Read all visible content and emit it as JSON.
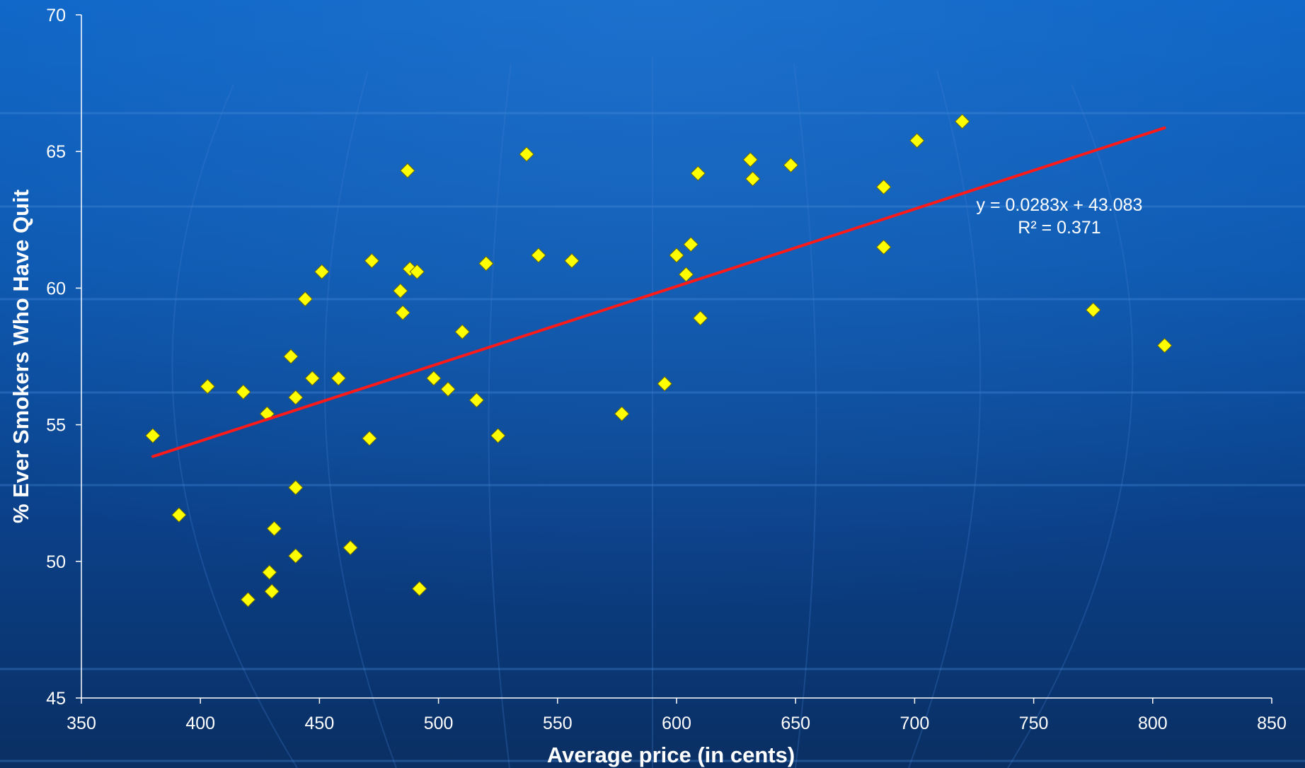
{
  "colors": {
    "marker": "#ffff00",
    "marker_stroke": "#6b6b00",
    "trendline": "#ff1a1a",
    "axis": "#ffffff",
    "text": "#ffffff"
  },
  "chart_data": {
    "type": "scatter",
    "title": "",
    "xlabel": "Average price (in cents)",
    "ylabel": "% Ever Smokers Who Have Quit",
    "xlim": [
      350,
      850
    ],
    "ylim": [
      45,
      70
    ],
    "x_ticks": [
      350,
      400,
      450,
      500,
      550,
      600,
      650,
      700,
      750,
      800,
      850
    ],
    "y_ticks": [
      45,
      50,
      55,
      60,
      65,
      70
    ],
    "grid": false,
    "legend": "none",
    "series": [
      {
        "marker": "diamond",
        "points": [
          [
            380,
            54.6
          ],
          [
            391,
            51.7
          ],
          [
            403,
            56.4
          ],
          [
            418,
            56.2
          ],
          [
            420,
            48.6
          ],
          [
            428,
            55.4
          ],
          [
            429,
            49.6
          ],
          [
            430,
            48.9
          ],
          [
            431,
            51.2
          ],
          [
            438,
            57.5
          ],
          [
            440,
            56.0
          ],
          [
            440,
            52.7
          ],
          [
            440,
            50.2
          ],
          [
            444,
            59.6
          ],
          [
            447,
            56.7
          ],
          [
            451,
            60.6
          ],
          [
            458,
            56.7
          ],
          [
            463,
            50.5
          ],
          [
            471,
            54.5
          ],
          [
            472,
            61.0
          ],
          [
            484,
            59.9
          ],
          [
            485,
            59.1
          ],
          [
            487,
            64.3
          ],
          [
            488,
            60.7
          ],
          [
            491,
            60.6
          ],
          [
            492,
            49.0
          ],
          [
            498,
            56.7
          ],
          [
            504,
            56.3
          ],
          [
            510,
            58.4
          ],
          [
            516,
            55.9
          ],
          [
            520,
            60.9
          ],
          [
            525,
            54.6
          ],
          [
            537,
            64.9
          ],
          [
            542,
            61.2
          ],
          [
            556,
            61.0
          ],
          [
            577,
            55.4
          ],
          [
            595,
            56.5
          ],
          [
            600,
            61.2
          ],
          [
            604,
            60.5
          ],
          [
            606,
            61.6
          ],
          [
            609,
            64.2
          ],
          [
            610,
            58.9
          ],
          [
            631,
            64.7
          ],
          [
            632,
            64.0
          ],
          [
            648,
            64.5
          ],
          [
            687,
            63.7
          ],
          [
            687,
            61.5
          ],
          [
            701,
            65.4
          ],
          [
            720,
            66.1
          ],
          [
            775,
            59.2
          ],
          [
            805,
            57.9
          ]
        ]
      }
    ],
    "trendline": {
      "type": "linear",
      "slope": 0.0283,
      "intercept": 43.083,
      "x_range": [
        380,
        805
      ],
      "equation_label": "y = 0.0283x + 43.083",
      "r2_label": "R² = 0.371"
    }
  }
}
